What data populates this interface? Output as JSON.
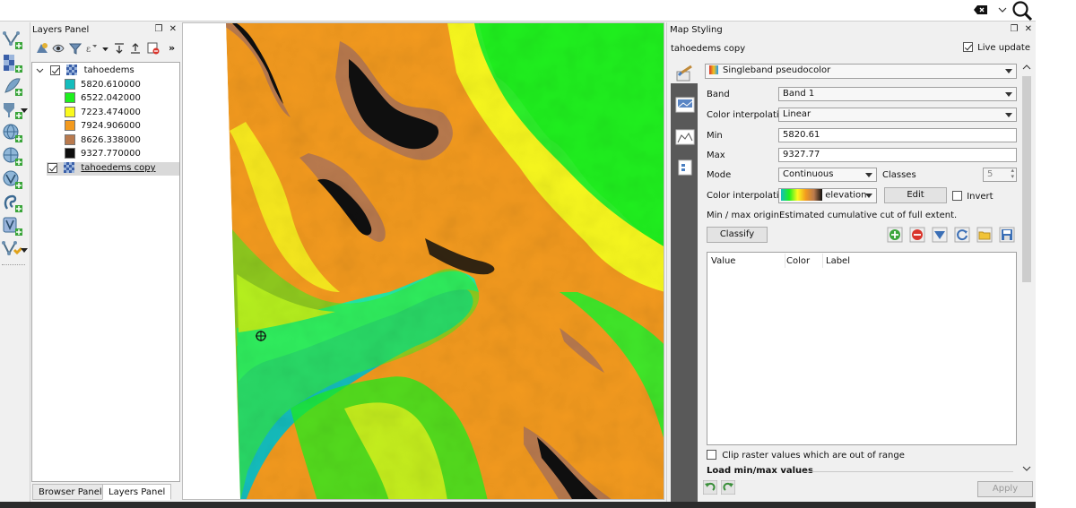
{
  "search": {
    "value": ""
  },
  "layers_panel": {
    "title": "Layers Panel",
    "layers": [
      {
        "name": "tahoedems",
        "checked": true,
        "expanded": true,
        "legend": [
          {
            "value": "5820.610000",
            "color": "#14bdbd"
          },
          {
            "value": "6522.042000",
            "color": "#1ef01e"
          },
          {
            "value": "7223.474000",
            "color": "#fafa1e"
          },
          {
            "value": "7924.906000",
            "color": "#f39a1e"
          },
          {
            "value": "8626.338000",
            "color": "#b97a4e"
          },
          {
            "value": "9327.770000",
            "color": "#0f0f0f"
          }
        ]
      },
      {
        "name": "tahoedems copy",
        "checked": true,
        "selected": true
      }
    ],
    "tabs": [
      "Browser Panel",
      "Layers Panel"
    ],
    "active_tab": "Layers Panel"
  },
  "styling": {
    "title": "Map Styling",
    "layer_name": "tahoedems copy",
    "live_update_label": "Live update",
    "renderer": "Singleband pseudocolor",
    "band_label": "Band",
    "band_value": "Band 1",
    "color_interp_label": "Color interpolation",
    "color_interp_value": "Linear",
    "min_label": "Min",
    "min_value": "5820.61",
    "max_label": "Max",
    "max_value": "9327.77",
    "mode_label": "Mode",
    "mode_value": "Continuous",
    "classes_label": "Classes",
    "classes_value": "5",
    "ramp_label": "Color interpolation",
    "ramp_name": "elevation",
    "edit_label": "Edit",
    "invert_label": "Invert",
    "minmax_origin_label": "Min / max origin:",
    "minmax_origin_value": "Estimated cumulative cut of full extent.",
    "classify_label": "Classify",
    "table_headers": [
      "Value",
      "Color",
      "Label"
    ],
    "clip_label": "Clip raster values which are out of range",
    "load_minmax_label": "Load min/max values",
    "apply_label": "Apply"
  },
  "colors": {
    "ramp": [
      "#14bdbd",
      "#1ef01e",
      "#fafa1e",
      "#f39a1e",
      "#b97a4e",
      "#0f0f0f"
    ]
  }
}
